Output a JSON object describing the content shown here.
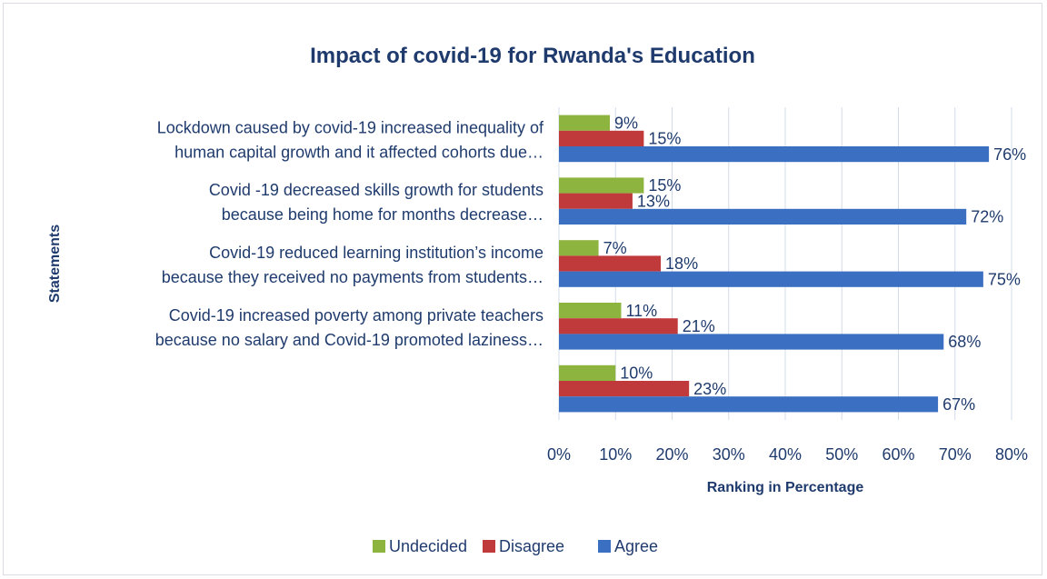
{
  "chart_data": {
    "type": "bar",
    "orientation": "horizontal",
    "title": "Impact of covid-19 for Rwanda's Education",
    "xlabel": "Ranking in Percentage",
    "ylabel": "Statements",
    "xlim": [
      0,
      80
    ],
    "xticks": [
      "0%",
      "10%",
      "20%",
      "30%",
      "40%",
      "50%",
      "60%",
      "70%",
      "80%"
    ],
    "grid": true,
    "legend_position": "bottom",
    "categories": [
      [
        "Lockdown caused by covid-19 increased inequality of",
        "human capital growth and it affected cohorts due…"
      ],
      [
        "Covid -19 decreased skills growth for students",
        "because being home for months decrease…"
      ],
      [
        "Covid-19 reduced learning institution’s income",
        "because they received no payments from students…"
      ],
      [
        "Covid-19 increased poverty among private teachers",
        "because no salary and Covid-19 promoted laziness…"
      ],
      [
        "",
        ""
      ]
    ],
    "series": [
      {
        "name": "Undecided",
        "color": "#8db43f",
        "values": [
          9,
          15,
          7,
          11,
          10
        ],
        "labels": [
          "9%",
          "15%",
          "7%",
          "11%",
          "10%"
        ]
      },
      {
        "name": "Disagree",
        "color": "#c0393b",
        "values": [
          15,
          13,
          18,
          21,
          23
        ],
        "labels": [
          "15%",
          "13%",
          "18%",
          "21%",
          "23%"
        ]
      },
      {
        "name": "Agree",
        "color": "#3b6fc1",
        "values": [
          76,
          72,
          75,
          68,
          67
        ],
        "labels": [
          "76%",
          "72%",
          "75%",
          "68%",
          "67%"
        ]
      }
    ]
  }
}
